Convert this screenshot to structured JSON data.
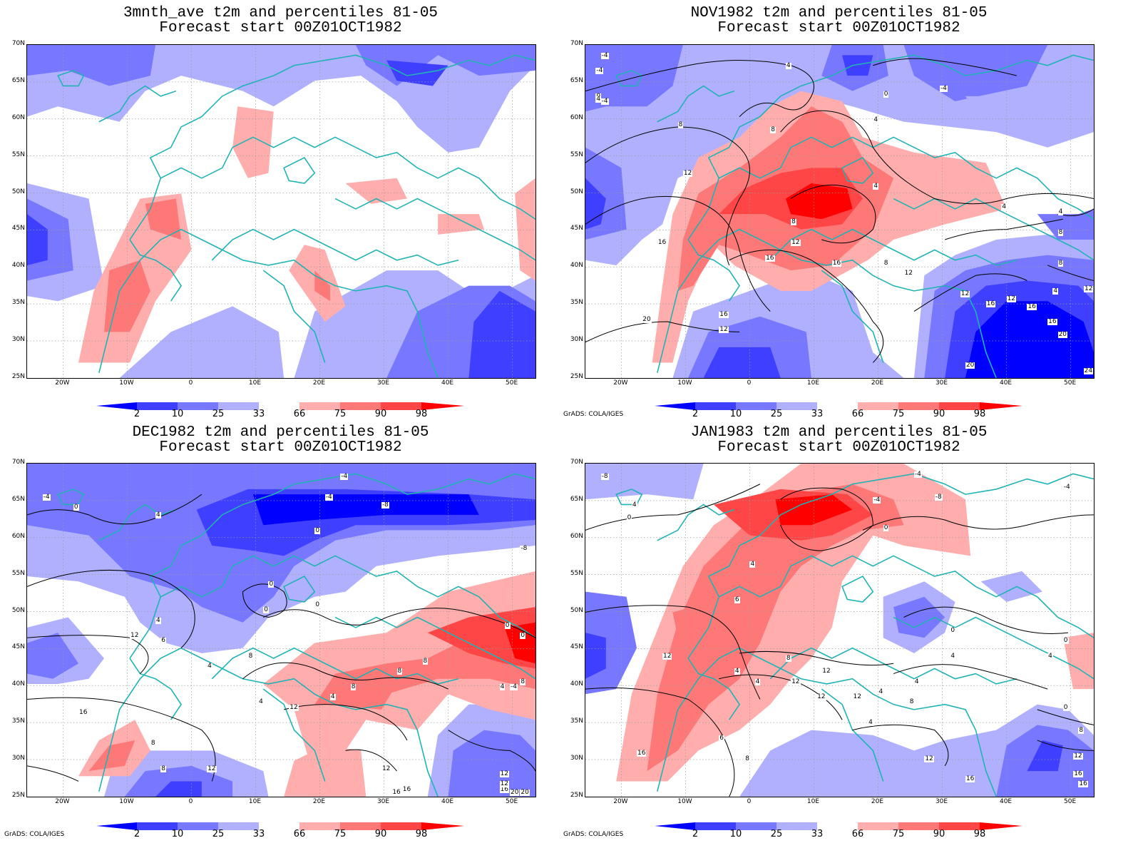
{
  "panels": [
    {
      "title1": "3mnth_ave t2m and percentiles 81-05",
      "title2": "Forecast start 00Z01OCT1982",
      "credit": ""
    },
    {
      "title1": "NOV1982 t2m and percentiles 81-05",
      "title2": "Forecast start 00Z01OCT1982",
      "credit": "GrADS: COLA/IGES"
    },
    {
      "title1": "DEC1982 t2m and percentiles 81-05",
      "title2": "Forecast start 00Z01OCT1982",
      "credit": "GrADS: COLA/IGES"
    },
    {
      "title1": "JAN1983 t2m and percentiles 81-05",
      "title2": "Forecast start 00Z01OCT1982",
      "credit": "GrADS: COLA/IGES"
    }
  ],
  "lat_labels": [
    "70N",
    "65N",
    "60N",
    "55N",
    "50N",
    "45N",
    "40N",
    "35N",
    "30N",
    "25N"
  ],
  "lon_labels": [
    "20W",
    "10W",
    "0",
    "10E",
    "20E",
    "30E",
    "40E",
    "50E"
  ],
  "colorbar_labels": [
    "2",
    "10",
    "25",
    "33",
    "66",
    "75",
    "90",
    "98"
  ],
  "colorbar_colors": [
    "#0000ff",
    "#3f3fff",
    "#7777ff",
    "#b0b0ff",
    "#ffffff",
    "#ffadad",
    "#ff7878",
    "#ff4646",
    "#ff0000"
  ],
  "contour_labels": {
    "nov": [
      "-4",
      "0",
      "4",
      "-4",
      "4",
      "0",
      "4",
      "8",
      "8",
      "12",
      "4",
      "4",
      "8",
      "12",
      "16",
      "16",
      "16",
      "8",
      "12",
      "12",
      "16",
      "12",
      "20",
      "16",
      "16",
      "8",
      "12",
      "4",
      "16",
      "20",
      "20",
      "12",
      "8",
      "4",
      "24",
      "-4",
      "-4"
    ],
    "dec": [
      "-4",
      "-4",
      "0",
      "4",
      "-4",
      "-8",
      "0",
      "-8",
      "4",
      "6",
      "0",
      "0",
      "12",
      "0",
      "0",
      "8",
      "4",
      "8",
      "8",
      "8",
      "4",
      "4",
      "16",
      "12",
      "8",
      "8",
      "12",
      "16",
      "12",
      "12",
      "16",
      "20",
      "12",
      "16",
      "20",
      "-4",
      "8",
      "4",
      "0"
    ],
    "jan": [
      "-4",
      "-8",
      "0",
      "4",
      "-4",
      "0",
      "4",
      "6",
      "12",
      "4",
      "4",
      "8",
      "12",
      "12",
      "16",
      "6",
      "8",
      "12",
      "0",
      "4",
      "4",
      "4",
      "8",
      "12",
      "12",
      "4",
      "0",
      "8",
      "12",
      "16",
      "16",
      "16",
      "-4",
      "-8",
      "0",
      "4"
    ]
  }
}
